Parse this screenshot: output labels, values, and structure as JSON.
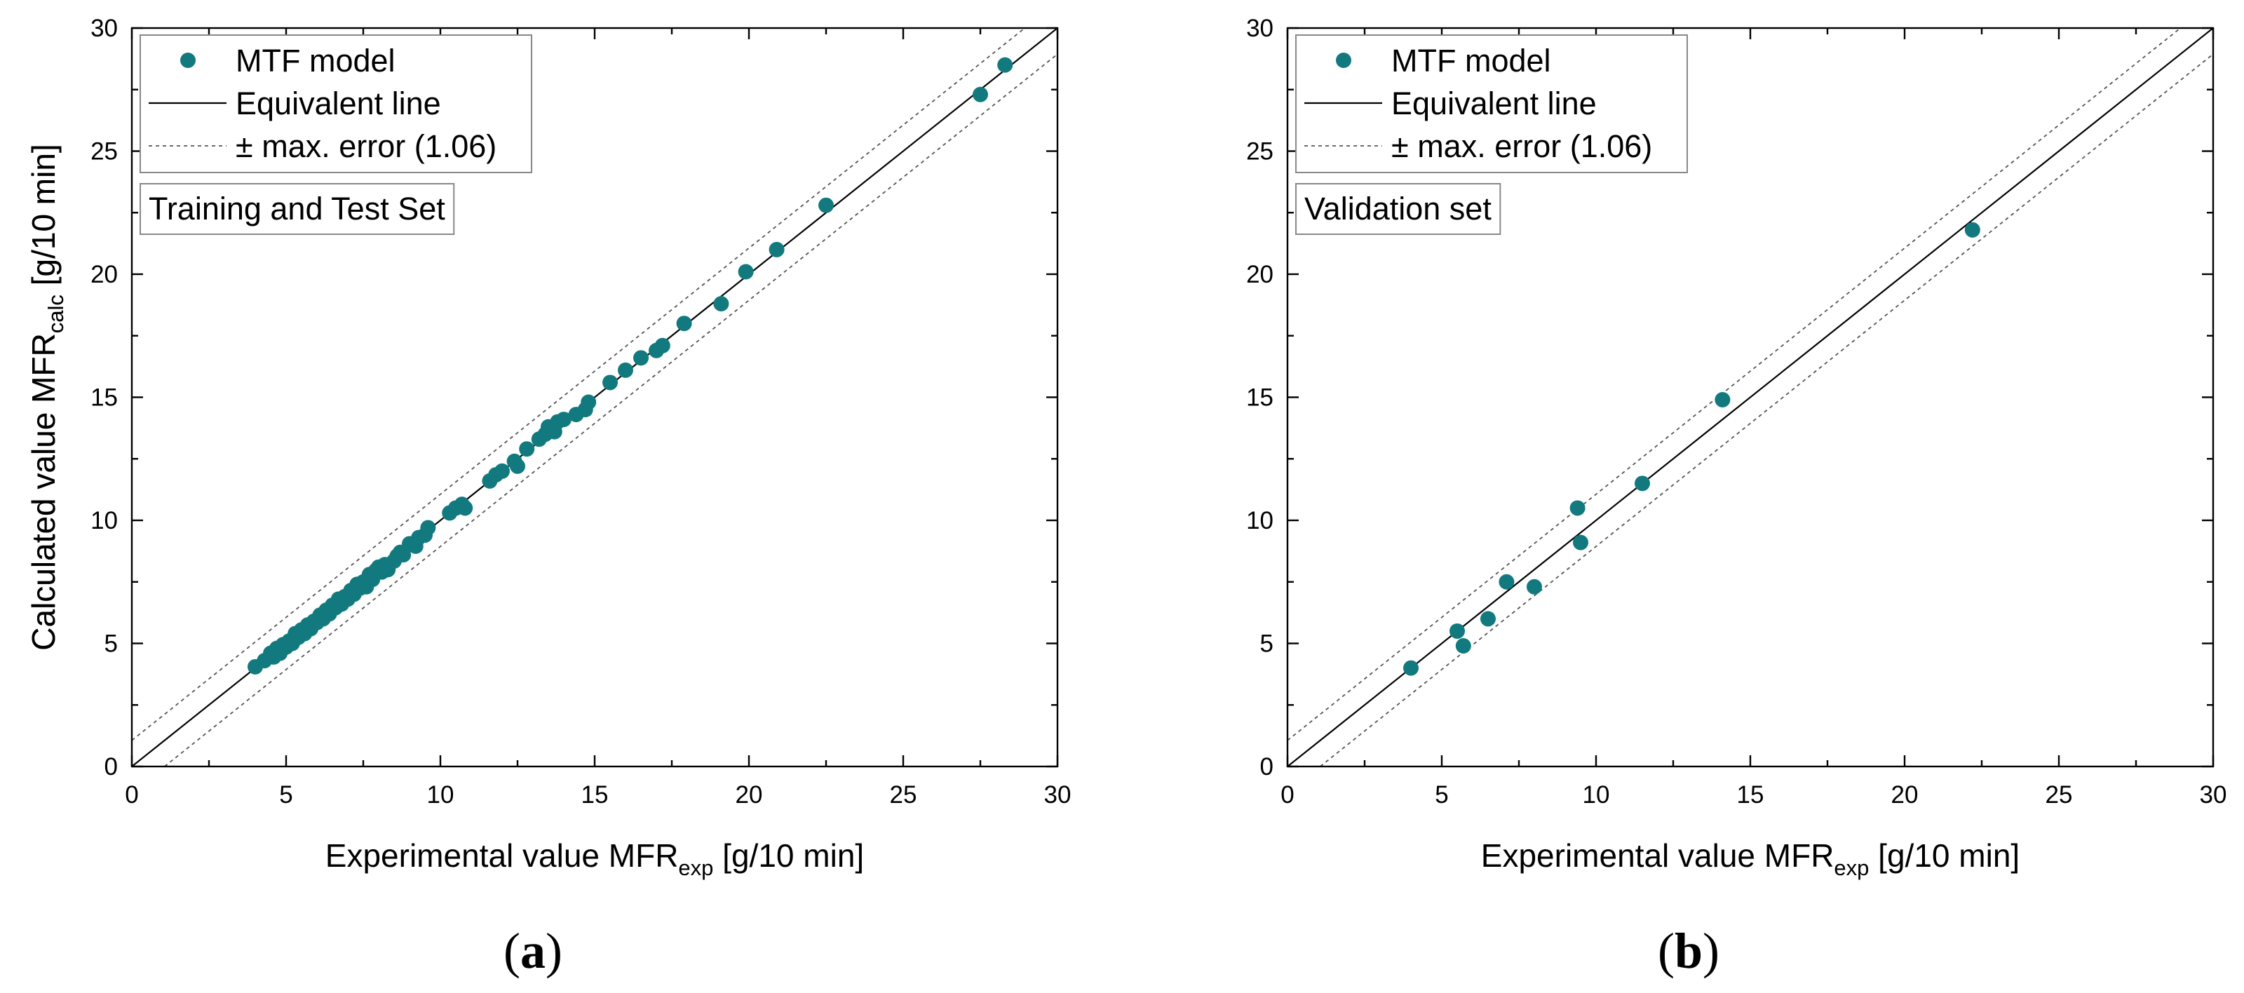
{
  "chart_data": [
    {
      "type": "scatter",
      "panel_label": "a",
      "x_title": "Experimental value MFR",
      "x_sub": "exp",
      "x_unit": " [g/10 min]",
      "y_title": "Calculated value MFR",
      "y_sub": "calc",
      "y_unit": " [g/10 min]",
      "xlim": [
        0,
        30
      ],
      "ylim": [
        0,
        30
      ],
      "xticks": [
        "0",
        "5",
        "10",
        "15",
        "20",
        "25",
        "30"
      ],
      "yticks": [
        "0",
        "5",
        "10",
        "15",
        "20",
        "25",
        "30"
      ],
      "grid": false,
      "legend_position": "top-left",
      "legend": [
        "MTF model",
        "Equivalent line",
        "± max. error (1.06)"
      ],
      "set_label": "Training and Test Set",
      "max_error": 1.06,
      "marker_color": "#127a7e",
      "series": [
        {
          "name": "MTF model",
          "points": [
            [
              4.0,
              4.05
            ],
            [
              4.3,
              4.3
            ],
            [
              4.5,
              4.6
            ],
            [
              4.6,
              4.45
            ],
            [
              4.7,
              4.8
            ],
            [
              4.8,
              4.6
            ],
            [
              4.9,
              4.95
            ],
            [
              5.0,
              4.85
            ],
            [
              5.1,
              5.1
            ],
            [
              5.2,
              5.0
            ],
            [
              5.3,
              5.4
            ],
            [
              5.4,
              5.25
            ],
            [
              5.5,
              5.55
            ],
            [
              5.6,
              5.4
            ],
            [
              5.7,
              5.75
            ],
            [
              5.8,
              5.6
            ],
            [
              5.9,
              5.9
            ],
            [
              6.0,
              5.85
            ],
            [
              6.1,
              6.15
            ],
            [
              6.2,
              6.0
            ],
            [
              6.3,
              6.35
            ],
            [
              6.4,
              6.2
            ],
            [
              6.5,
              6.55
            ],
            [
              6.6,
              6.45
            ],
            [
              6.7,
              6.8
            ],
            [
              6.8,
              6.6
            ],
            [
              6.9,
              6.9
            ],
            [
              7.0,
              6.8
            ],
            [
              7.1,
              7.15
            ],
            [
              7.2,
              7.0
            ],
            [
              7.3,
              7.4
            ],
            [
              7.4,
              7.25
            ],
            [
              7.5,
              7.5
            ],
            [
              7.6,
              7.3
            ],
            [
              7.7,
              7.8
            ],
            [
              7.8,
              7.6
            ],
            [
              7.9,
              7.95
            ],
            [
              8.0,
              8.1
            ],
            [
              8.1,
              7.9
            ],
            [
              8.2,
              8.2
            ],
            [
              8.3,
              8.0
            ],
            [
              8.5,
              8.35
            ],
            [
              8.6,
              8.55
            ],
            [
              8.7,
              8.7
            ],
            [
              8.8,
              8.6
            ],
            [
              9.0,
              9.05
            ],
            [
              9.2,
              8.95
            ],
            [
              9.3,
              9.3
            ],
            [
              9.5,
              9.4
            ],
            [
              9.6,
              9.7
            ],
            [
              10.3,
              10.3
            ],
            [
              10.5,
              10.5
            ],
            [
              10.7,
              10.65
            ],
            [
              10.8,
              10.5
            ],
            [
              11.6,
              11.6
            ],
            [
              11.8,
              11.85
            ],
            [
              12.0,
              12.0
            ],
            [
              12.4,
              12.4
            ],
            [
              12.5,
              12.2
            ],
            [
              12.8,
              12.9
            ],
            [
              13.2,
              13.3
            ],
            [
              13.4,
              13.5
            ],
            [
              13.5,
              13.8
            ],
            [
              13.7,
              13.6
            ],
            [
              13.8,
              14.0
            ],
            [
              14.0,
              14.1
            ],
            [
              14.4,
              14.3
            ],
            [
              14.7,
              14.5
            ],
            [
              14.8,
              14.8
            ],
            [
              15.5,
              15.6
            ],
            [
              16.0,
              16.1
            ],
            [
              16.5,
              16.6
            ],
            [
              17.0,
              16.9
            ],
            [
              17.2,
              17.1
            ],
            [
              17.9,
              18.0
            ],
            [
              19.1,
              18.8
            ],
            [
              19.9,
              20.1
            ],
            [
              20.9,
              21.0
            ],
            [
              22.5,
              22.8
            ],
            [
              27.5,
              27.3
            ],
            [
              28.3,
              28.5
            ]
          ]
        }
      ]
    },
    {
      "type": "scatter",
      "panel_label": "b",
      "x_title": "Experimental value MFR",
      "x_sub": "exp",
      "x_unit": " [g/10 min]",
      "y_title": "Calculated value MFR",
      "y_sub": "calc",
      "y_unit": " [g/10 min]",
      "xlim": [
        0,
        30
      ],
      "ylim": [
        0,
        30
      ],
      "xticks": [
        "0",
        "5",
        "10",
        "15",
        "20",
        "25",
        "30"
      ],
      "yticks": [
        "0",
        "5",
        "10",
        "15",
        "20",
        "25",
        "30"
      ],
      "grid": false,
      "legend_position": "top-left",
      "legend": [
        "MTF model",
        "Equivalent line",
        "± max. error (1.06)"
      ],
      "set_label": "Validation set",
      "max_error": 1.06,
      "marker_color": "#127a7e",
      "series": [
        {
          "name": "MTF model",
          "points": [
            [
              4.0,
              4.0
            ],
            [
              5.5,
              5.5
            ],
            [
              5.7,
              4.9
            ],
            [
              6.5,
              6.0
            ],
            [
              7.1,
              7.5
            ],
            [
              8.0,
              7.3
            ],
            [
              9.4,
              10.5
            ],
            [
              9.5,
              9.1
            ],
            [
              11.5,
              11.5
            ],
            [
              14.1,
              14.9
            ],
            [
              22.2,
              21.8
            ]
          ]
        }
      ]
    }
  ]
}
